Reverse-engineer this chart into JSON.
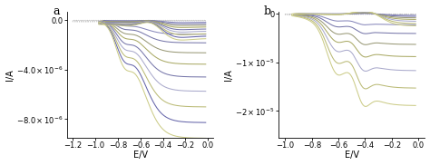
{
  "panel_a": {
    "xlim": [
      -1.25,
      0.05
    ],
    "ylim": [
      -9.5e-06,
      7e-07
    ],
    "xticks": [
      -1.2,
      -1.0,
      -0.8,
      -0.6,
      -0.4,
      -0.2,
      0.0
    ],
    "yticks": [
      0.0,
      -4e-06,
      -8e-06
    ],
    "xlabel": "E/V",
    "ylabel": "I/A",
    "label": "a"
  },
  "panel_b": {
    "xlim": [
      -1.05,
      0.05
    ],
    "ylim": [
      -2.55e-05,
      5e-07
    ],
    "xticks": [
      -1.0,
      -0.8,
      -0.6,
      -0.4,
      -0.2,
      0.0
    ],
    "yticks": [
      0.0,
      -1e-05,
      -2e-05
    ],
    "xlabel": "E/V",
    "ylabel": "I/A",
    "label": "b"
  },
  "colors_a_solid": [
    "#8888bb",
    "#7777aa",
    "#999977",
    "#aaaa66",
    "#7777aa",
    "#aaaacc",
    "#bbbb77",
    "#6666aa",
    "#cccc88"
  ],
  "colors_a_dotted": [
    "#aaaaaa",
    "#bbbbbb",
    "#cccccc",
    "#dddddd"
  ],
  "colors_b_solid": [
    "#8888bb",
    "#7777aa",
    "#999977",
    "#aaaa66",
    "#aaaacc",
    "#bbbb77",
    "#cccc88"
  ],
  "colors_b_dotted": [
    "#aaaaaa",
    "#bbbbbb",
    "#cccccc"
  ]
}
